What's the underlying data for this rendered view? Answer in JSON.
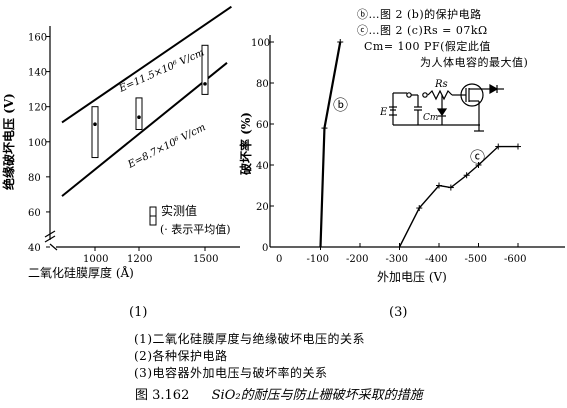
{
  "chart_data": [
    {
      "type": "line",
      "panel_label": "(1)",
      "ylabel": "绝缘破坏电压 (V)",
      "xlabel": "二氧化硅膜厚度 (Å)",
      "x_ticks": [
        "1000",
        "1200",
        "1500"
      ],
      "y_ticks": [
        "40",
        "60",
        "80",
        "100",
        "120",
        "140",
        "160"
      ],
      "xlim": [
        750,
        1650
      ],
      "ylim": [
        40,
        166
      ],
      "lines": [
        {
          "name": "E=11.5×10⁶ V/cm",
          "points": [
            [
              850,
              111
            ],
            [
              1620,
              177
            ]
          ]
        },
        {
          "name": "E=8.7×10⁶ V/cm",
          "points": [
            [
              850,
              69
            ],
            [
              1600,
              145
            ]
          ]
        }
      ],
      "ranges": [
        {
          "x": 1000,
          "min": 91,
          "max": 120,
          "mean": 110
        },
        {
          "x": 1200,
          "min": 107,
          "max": 125,
          "mean": 114
        },
        {
          "x": 1500,
          "min": 127,
          "max": 155,
          "mean": 133
        }
      ],
      "legend": {
        "symbol_label": "实测值",
        "note": "(· 表示平均值)"
      }
    },
    {
      "type": "line",
      "panel_label": "(3)",
      "ylabel": "破坏率 (%)",
      "xlabel": "外加电压 (V)",
      "x_ticks": [
        "0",
        "-100",
        "-200",
        "-300",
        "-400",
        "-500",
        "-600"
      ],
      "y_ticks": [
        "0",
        "20",
        "40",
        "60",
        "80",
        "100"
      ],
      "xlim": [
        0,
        650
      ],
      "ylim": [
        0,
        100
      ],
      "series": [
        {
          "name": "ⓑ",
          "x": [
            100,
            110,
            150
          ],
          "y": [
            0,
            58,
            100
          ]
        },
        {
          "name": "ⓒ",
          "x": [
            300,
            350,
            400,
            430,
            470,
            500,
            550,
            600
          ],
          "y": [
            0,
            19,
            30,
            29,
            35,
            40,
            49,
            49
          ]
        }
      ]
    }
  ],
  "circuit_legend": {
    "b_text": "ⓑ…图 2 (b)的保护电路",
    "c_text": "ⓒ…图 2 (c)Rs = 07kΩ",
    "cm_text": "Cm= 100  PF(假定此值",
    "cm_note": "为人体电容的最大值)",
    "label_rs": "Rs",
    "label_e": "E",
    "label_cm": "Cm"
  },
  "captions": {
    "panel1": "(1)",
    "panel3": "(3)",
    "line1": "(1)二氧化硅膜厚度与绝缘破坏电压的关系",
    "line2": "(2)各种保护电路",
    "line3": "(3)电容器外加电压与破坏率的关系",
    "figure_no": "图 3.162",
    "figure_title": "SiO₂的耐压与防止栅破坏采取的措施"
  }
}
